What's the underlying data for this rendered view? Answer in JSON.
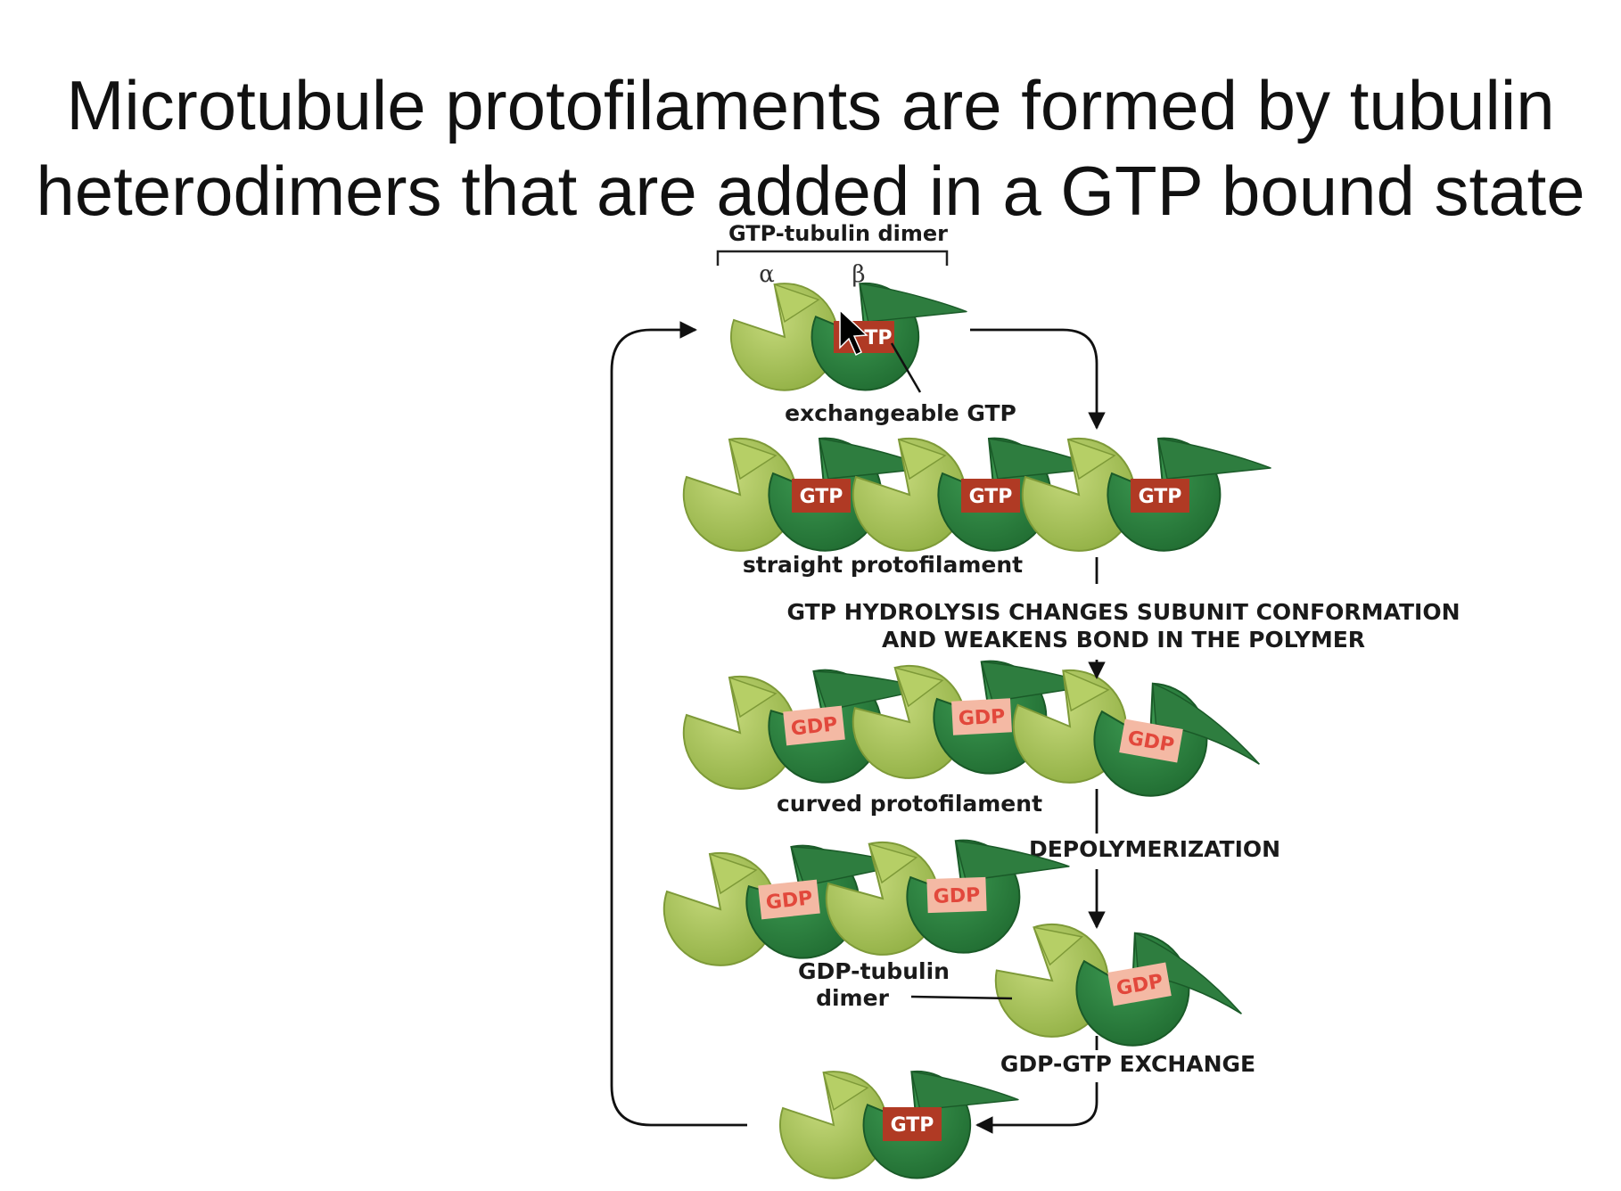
{
  "slide": {
    "title_line1": "Microtubule protofilaments are formed by tubulin",
    "title_line2": "heterodimers that are added in a GTP bound state"
  },
  "labels": {
    "dimer_header": "GTP-tubulin dimer",
    "alpha": "α",
    "beta": "β",
    "exchangeable": "exchangeable GTP",
    "straight": "straight protofilament",
    "hydrolysis_line1": "GTP HYDROLYSIS CHANGES SUBUNIT CONFORMATION",
    "hydrolysis_line2": "AND WEAKENS BOND IN THE POLYMER",
    "curved": "curved protofilament",
    "depoly": "DEPOLYMERIZATION",
    "gdp_dimer_line1": "GDP-tubulin",
    "gdp_dimer_line2": "dimer",
    "exchange": "GDP-GTP EXCHANGE"
  },
  "nucleotides": {
    "gtp": "GTP",
    "gdp": "GDP",
    "top_gtp_visible": "TP"
  },
  "colors": {
    "alpha_tubulin": "#a9c45a",
    "beta_tubulin": "#2e7d3f",
    "gtp_box": "#b03a24",
    "gdp_box": "#f4b9a4",
    "gdp_text": "#e2483c"
  }
}
